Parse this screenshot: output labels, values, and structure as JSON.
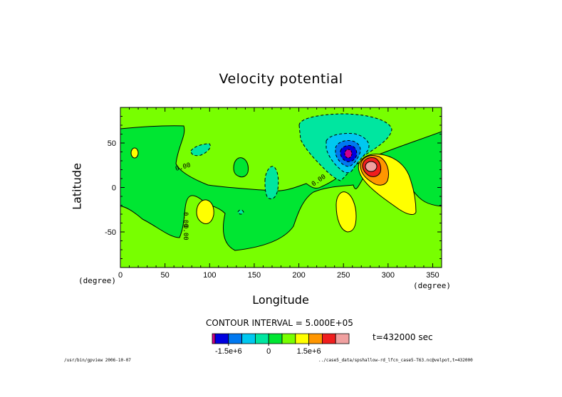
{
  "title": "Velocity potential",
  "contour_interval": "CONTOUR INTERVAL = 5.000E+05",
  "time_label": "t=432000 sec",
  "footer": {
    "left": "/usr/bin/gpview  2006-10-07",
    "right": "../case5_data/spshallow-rd_lfcn_case5-T63.nc@velpot,t=432000"
  },
  "chart_data": {
    "type": "heatmap",
    "title": "Velocity potential",
    "xlabel": "Longitude",
    "ylabel": "Latitude",
    "x_unit": "(degree)",
    "y_unit": "(degree)",
    "xlim": [
      0,
      360
    ],
    "ylim": [
      -90,
      90
    ],
    "x_ticks": [
      0,
      50,
      100,
      150,
      200,
      250,
      300,
      350
    ],
    "y_ticks": [
      -50,
      0,
      50
    ],
    "contour_interval": 500000,
    "contour_labels": [
      "0.00",
      "0.00",
      "0.00",
      "0.00"
    ],
    "colorbar": {
      "levels": [
        -2500000,
        -2000000,
        -1500000,
        -1000000,
        -500000,
        0,
        500000,
        1000000,
        1500000,
        2000000,
        2500000
      ],
      "colors": [
        "#d0008c",
        "#0000e0",
        "#0078f0",
        "#00c8f0",
        "#00e6a0",
        "#00e632",
        "#78ff00",
        "#ffff00",
        "#ff9600",
        "#f01e1e",
        "#f0a0a0"
      ],
      "tick_labels": [
        "-1.5e+6",
        "0",
        "1.5e+6"
      ],
      "tick_values": [
        -1500000,
        0,
        1500000
      ]
    },
    "features": [
      {
        "kind": "minimum",
        "lon": 255,
        "lat": 38,
        "value": -2500000
      },
      {
        "kind": "maximum",
        "lon": 282,
        "lat": 22,
        "value": 2500000
      }
    ]
  }
}
